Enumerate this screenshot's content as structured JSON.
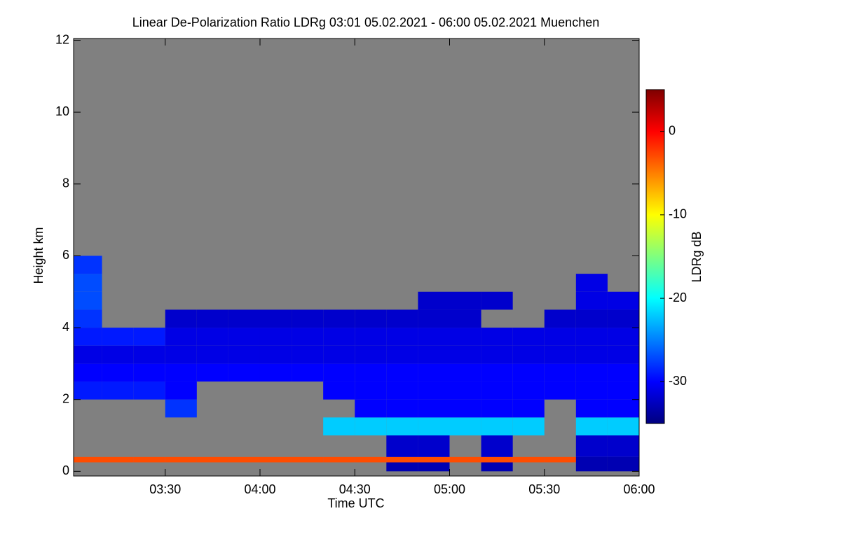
{
  "chart_data": {
    "type": "heatmap",
    "title": "Linear De-Polarization Ratio LDRg   03:01 05.02.2021 - 06:00 05.02.2021 Muenchen",
    "x_label": "Time UTC",
    "y_label": "Height km",
    "colorbar_label": "LDRg dB",
    "xlim": [
      181,
      360
    ],
    "xticks": [
      {
        "value": 210,
        "label": "03:30"
      },
      {
        "value": 240,
        "label": "04:00"
      },
      {
        "value": 270,
        "label": "04:30"
      },
      {
        "value": 300,
        "label": "05:00"
      },
      {
        "value": 330,
        "label": "05:30"
      },
      {
        "value": 360,
        "label": "06:00"
      }
    ],
    "ylim": [
      -0.13,
      12.05
    ],
    "yticks": [
      0,
      2,
      4,
      6,
      8,
      10,
      12
    ],
    "clim": [
      -35,
      5
    ],
    "cticks": [
      0,
      -10,
      -20,
      -30
    ],
    "colormap": [
      "#00007f",
      "#0000ff",
      "#007fff",
      "#00ffff",
      "#7fff7f",
      "#ffff00",
      "#ff7f00",
      "#ff0000",
      "#7f0000"
    ],
    "background_color": "#808080",
    "x_bins": [
      181,
      190,
      200,
      210,
      220,
      230,
      240,
      250,
      260,
      270,
      280,
      290,
      300,
      310,
      320,
      330,
      340,
      350,
      360
    ],
    "y_bins": [
      0,
      0.25,
      0.4,
      1,
      1.5,
      2,
      2.5,
      3,
      3.5,
      4,
      4.5,
      5,
      5.5,
      6
    ],
    "z": [
      [
        null,
        null,
        null,
        null,
        null,
        null,
        null,
        null,
        null,
        null,
        -33,
        -33,
        null,
        -33,
        null,
        null,
        -33,
        -33
      ],
      [
        -3,
        -3,
        -3,
        -3,
        -3,
        -3,
        -3,
        -3,
        -3,
        -3,
        -3,
        -3,
        -3,
        -3,
        -3,
        -3,
        -33,
        -33
      ],
      [
        null,
        null,
        null,
        null,
        null,
        null,
        null,
        null,
        null,
        null,
        -32,
        -32,
        null,
        -32,
        null,
        null,
        -32,
        -32
      ],
      [
        null,
        null,
        null,
        null,
        null,
        null,
        null,
        null,
        -22,
        -22,
        -22,
        -22,
        -22,
        -22,
        -22,
        null,
        -22,
        -22
      ],
      [
        null,
        null,
        null,
        -28,
        null,
        null,
        null,
        null,
        null,
        -30,
        -30,
        -30,
        -30,
        -30,
        -30,
        null,
        -30,
        -30
      ],
      [
        -29,
        -29,
        -29,
        -30,
        null,
        null,
        null,
        null,
        -30,
        -30,
        -30,
        -30,
        -30,
        -30,
        -30,
        -30,
        -30,
        -30
      ],
      [
        -30,
        -30,
        -30,
        -30,
        -30,
        -30,
        -30,
        -30,
        -30,
        -30,
        -30,
        -30,
        -30,
        -30,
        -30,
        -30,
        -30,
        -30
      ],
      [
        -31,
        -31,
        -31,
        -31,
        -31,
        -31,
        -31,
        -31,
        -31,
        -31,
        -31,
        -31,
        -31,
        -31,
        -31,
        -31,
        -31,
        -31
      ],
      [
        -29,
        -29,
        -29,
        -31,
        -31,
        -31,
        -31,
        -31,
        -31,
        -31,
        -31,
        -31,
        -31,
        -31,
        -31,
        -31,
        -31,
        -31
      ],
      [
        -28,
        null,
        null,
        -32,
        -32,
        -32,
        -32,
        -32,
        -32,
        -32,
        -32,
        -32,
        -32,
        null,
        null,
        -32,
        -32,
        -32
      ],
      [
        -27,
        null,
        null,
        null,
        null,
        null,
        null,
        null,
        null,
        null,
        null,
        -32,
        -32,
        -32,
        null,
        null,
        -31,
        -31
      ],
      [
        -27,
        null,
        null,
        null,
        null,
        null,
        null,
        null,
        null,
        null,
        null,
        null,
        null,
        null,
        null,
        null,
        -31,
        null
      ],
      [
        -28,
        null,
        null,
        null,
        null,
        null,
        null,
        null,
        null,
        null,
        null,
        null,
        null,
        null,
        null,
        null,
        null,
        null
      ]
    ]
  }
}
